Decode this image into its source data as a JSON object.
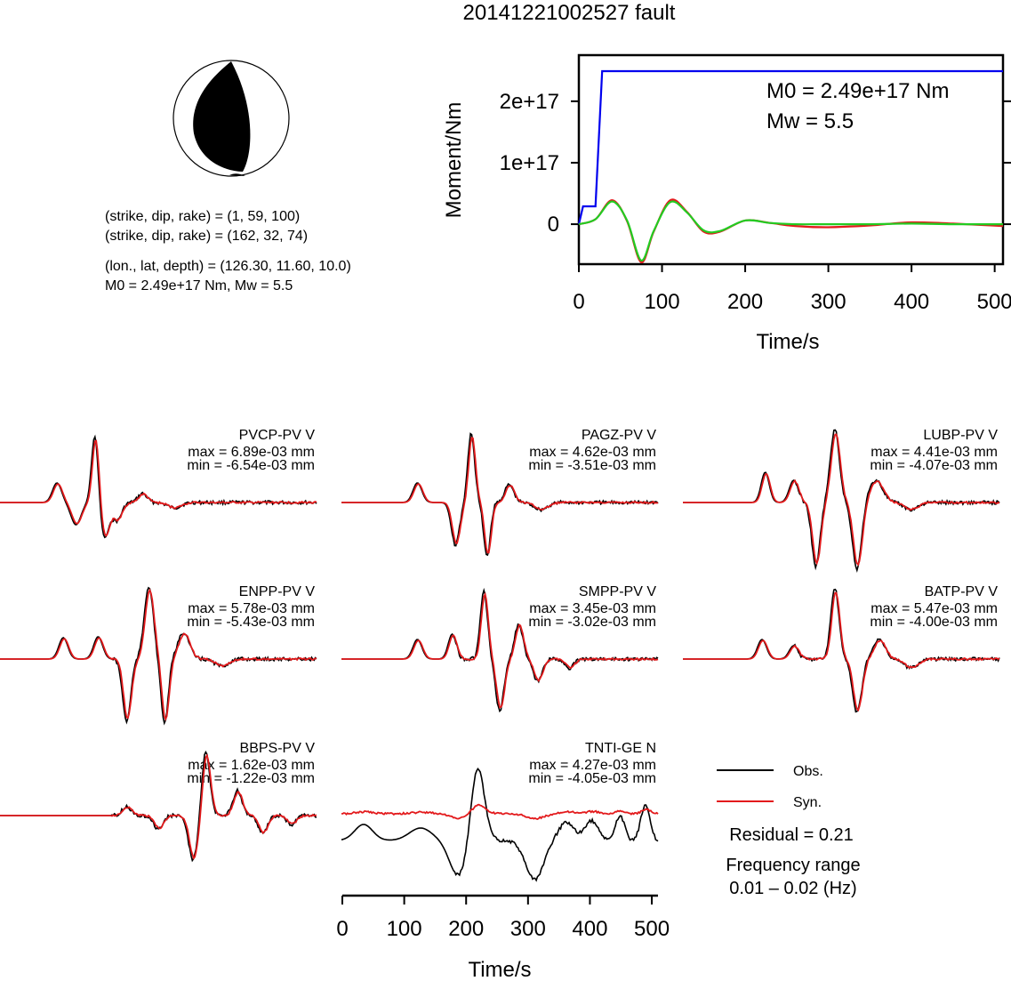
{
  "title": "20141221002527 fault",
  "colors": {
    "obs": "#000000",
    "syn": "#e31a1c",
    "moment": "#0000ee",
    "stf": "#22cc22"
  },
  "beachball": {
    "line1": "(strike, dip, rake) = (1, 59, 100)",
    "line2": "(strike, dip, rake) = (162, 32, 74)",
    "line3": "(lon., lat, depth) = (126.30, 11.60, 10.0)",
    "line4": "M0 = 2.49e+17 Nm, Mw = 5.5"
  },
  "moment_panel": {
    "ylabel": "Moment/Nm",
    "xlabel": "Time/s",
    "x_ticks": [
      "0",
      "100",
      "200",
      "300",
      "400",
      "500"
    ],
    "y_ticks": [
      "2e+17",
      "1e+17",
      "0"
    ],
    "m0_text": "M0 = 2.49e+17 Nm",
    "mw_text": "Mw = 5.5"
  },
  "traces": [
    {
      "name": "PVCP-PV V",
      "max": "max = 6.89e-03 mm",
      "min": "min = -6.54e-03 mm"
    },
    {
      "name": "PAGZ-PV V",
      "max": "max = 4.62e-03 mm",
      "min": "min = -3.51e-03 mm"
    },
    {
      "name": "LUBP-PV V",
      "max": "max = 4.41e-03 mm",
      "min": "min = -4.07e-03 mm"
    },
    {
      "name": "ENPP-PV V",
      "max": "max = 5.78e-03 mm",
      "min": "min = -5.43e-03 mm"
    },
    {
      "name": "SMPP-PV V",
      "max": "max = 3.45e-03 mm",
      "min": "min = -3.02e-03 mm"
    },
    {
      "name": "BATP-PV V",
      "max": "max = 5.47e-03 mm",
      "min": "min = -4.00e-03 mm"
    },
    {
      "name": "BBPS-PV V",
      "max": "max = 1.62e-03 mm",
      "min": "min = -1.22e-03 mm"
    },
    {
      "name": "TNTI-GE N",
      "max": "max = 4.27e-03 mm",
      "min": "min = -4.05e-03 mm"
    }
  ],
  "trace_axis": {
    "xlabel": "Time/s",
    "x_ticks": [
      "0",
      "100",
      "200",
      "300",
      "400",
      "500"
    ]
  },
  "legend": {
    "obs": "Obs.",
    "syn": "Syn.",
    "residual": "Residual = 0.21",
    "freq_title": "Frequency range",
    "freq_range": "0.01 – 0.02 (Hz)"
  },
  "chart_data": [
    {
      "type": "line",
      "title": "20141221002527 fault",
      "xlabel": "Time/s",
      "ylabel": "Moment/Nm",
      "xlim": [
        0,
        510
      ],
      "ylim": [
        -6.5e+16,
        2.75e+17
      ],
      "series": [
        {
          "values_x": [
            0,
            5,
            20,
            28,
            510
          ],
          "values_y": [
            0,
            2.9e+16,
            2.9e+16,
            2.49e+17,
            2.49e+17
          ]
        },
        {
          "values_x": [
            0,
            20,
            40,
            58,
            75,
            90,
            110,
            130,
            150,
            170,
            200,
            230,
            260,
            300,
            350,
            400,
            450,
            510
          ],
          "values_y": [
            0,
            8000000000000000.0,
            3.9e+16,
            5000000000000000.0,
            -6.2e+16,
            -1.2e+16,
            3.9e+16,
            2e+16,
            -1.2e+16,
            -1.2e+16,
            6000000000000000.0,
            2000000000000000.0,
            -3000000000000000.0,
            -5000000000000000.0,
            -2000000000000000.0,
            3000000000000000.0,
            1000000000000000.0,
            -3000000000000000.0
          ]
        },
        {
          "values_x": [
            0,
            20,
            40,
            58,
            75,
            90,
            110,
            130,
            150,
            170,
            200,
            230,
            260,
            300,
            350,
            400,
            450,
            510
          ],
          "values_y": [
            0,
            8000000000000000.0,
            3.7e+16,
            6000000000000000.0,
            -5.9e+16,
            -1.1e+16,
            3.6e+16,
            1.9e+16,
            -1e+16,
            -1.1e+16,
            6000000000000000.0,
            2000000000000000.0,
            0,
            0,
            0,
            1000000000000000.0,
            0,
            0
          ]
        }
      ]
    }
  ]
}
